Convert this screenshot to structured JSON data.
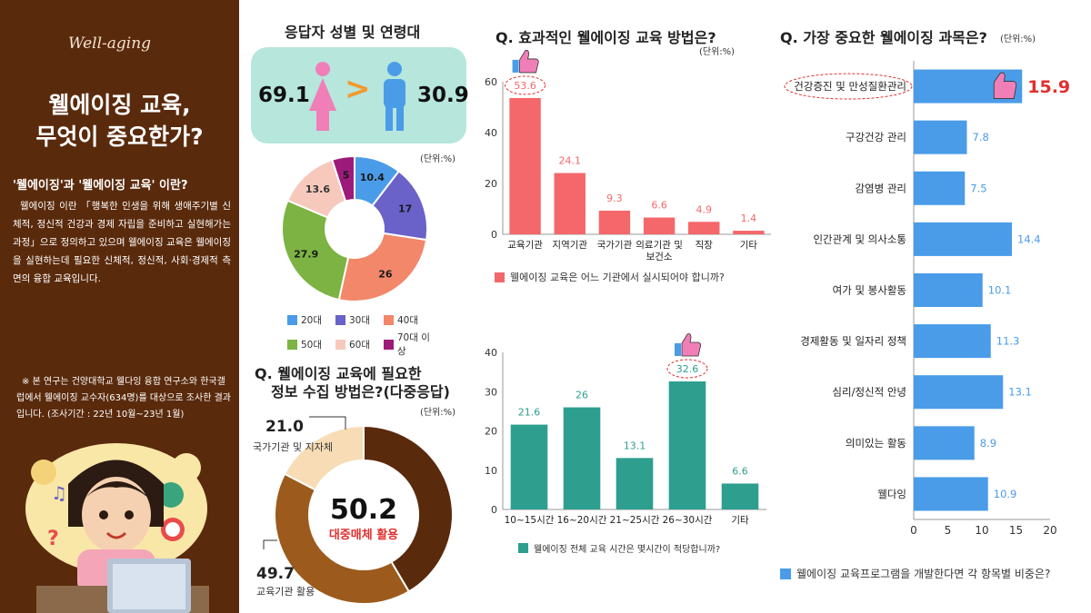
{
  "left": {
    "logo": "Well-aging",
    "title_line1": "웰에이징 교육,",
    "title_line2": "무엇이 중요한가?",
    "subtitle": "'웰에이징'과 '웰에이징 교육' 이란?",
    "description": "웰에이징 이란 「행복한 인생을 위해 생애주기별 신체적, 정신적 건강과 경제 자립을 준비하고 실현해가는 과정」으로 정의하고 있으며 웰에이징 교육은 웰에이징을 실현하는데 필요한 신체적, 정신적, 사회·경제적 측면의 융합 교육입니다.",
    "note": "※ 본 연구는 건양대학교 웰다잉 융합 연구소와 한국갤럽에서 웰에이징 교수자(634명)를 대상으로 조사한 결과입니다. (조사기간 : 22년 10월~23년 1월)"
  },
  "gender": {
    "title": "응답자 성별 및 연령대",
    "female": "69.1",
    "male": "30.9",
    "symbol": ">"
  },
  "chart_data": [
    {
      "id": "age",
      "type": "pie",
      "title": "",
      "unit": "(단위:%)",
      "categories": [
        "20대",
        "30대",
        "40대",
        "50대",
        "60대",
        "70대 이상"
      ],
      "values": [
        10.4,
        17,
        26,
        27.9,
        13.6,
        5
      ],
      "colors": [
        "#4a9ce8",
        "#6a62c8",
        "#f2876a",
        "#7cb342",
        "#f7c9bd",
        "#9c1a7a"
      ]
    },
    {
      "id": "info",
      "type": "pie",
      "title": "Q. 웰에이징 교육에 필요한 정보 수집 방법은?(다중응답)",
      "title_line1": "Q. 웰에이징 교육에 필요한",
      "title_line2": "정보 수집 방법은?(다중응답)",
      "unit": "(단위:%)",
      "categories": [
        "대중매체 활용",
        "교육기관 활용",
        "국가기관 및 지자체"
      ],
      "values": [
        50.2,
        49.7,
        21.0
      ],
      "labels": [
        "50.2",
        "49.7",
        "21.0"
      ],
      "colors": [
        "#5a2a0c",
        "#9c5a1c",
        "#f7dcb5"
      ]
    },
    {
      "id": "method",
      "type": "bar",
      "title": "Q. 효과적인 웰에이징 교육 방법은?",
      "unit": "(단위:%)",
      "categories": [
        "교육기관",
        "지역기관",
        "국가기관",
        "의료기관 및\n보건소",
        "직장",
        "기타"
      ],
      "values": [
        53.6,
        24.1,
        9.3,
        6.6,
        4.9,
        1.4
      ],
      "ylim": [
        0,
        60
      ],
      "yticks": [
        0,
        20,
        40,
        60
      ],
      "color": "#f4676a",
      "legend": "웰에이징 교육은 어느 기관에서 실시되어야 합니까?"
    },
    {
      "id": "hours",
      "type": "bar",
      "title": "",
      "unit": "",
      "categories": [
        "10~15시간",
        "16~20시간",
        "21~25시간",
        "26~30시간",
        "기타"
      ],
      "values": [
        21.6,
        26,
        13.1,
        32.6,
        6.6
      ],
      "ylim": [
        0,
        40
      ],
      "yticks": [
        0,
        10,
        20,
        30,
        40
      ],
      "color": "#2e9e8f",
      "legend": "웰에이징 전체 교육 시간은 몇시간이 적당합니까?"
    },
    {
      "id": "subject",
      "type": "bar",
      "orientation": "horizontal",
      "title": "Q. 가장 중요한 웰에이징 과목은?",
      "unit": "(단위:%)",
      "categories": [
        "건강증진 및 만성질환관리",
        "구강건강 관리",
        "감염병 관리",
        "인간관계 및 의사소통",
        "여가 및 봉사활동",
        "경제활동 및 일자리 정책",
        "심리/정신적 안녕",
        "의미있는 활동",
        "웰다잉"
      ],
      "values": [
        15.9,
        7.8,
        7.5,
        14.4,
        10.1,
        11.3,
        13.1,
        8.9,
        10.9
      ],
      "xlim": [
        0,
        20
      ],
      "xticks": [
        0,
        5,
        10,
        15,
        20
      ],
      "color": "#4a9ce8",
      "legend": "웰에이징 교육프로그램을 개발한다면 각 항목별 비중은?"
    }
  ]
}
